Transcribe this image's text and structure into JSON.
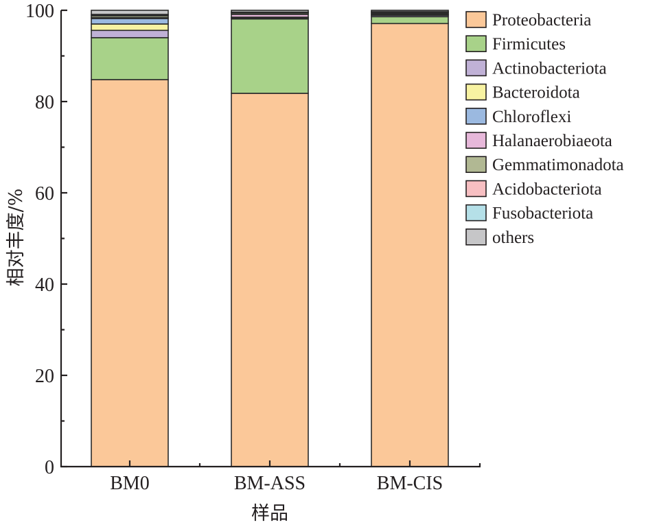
{
  "chart_data": {
    "type": "bar",
    "stacked": true,
    "title": "",
    "xlabel": "样品",
    "ylabel": "相对丰度/%",
    "ylim": [
      0,
      100
    ],
    "yticks": [
      0,
      20,
      40,
      60,
      80,
      100
    ],
    "y_minor_step": 10,
    "grid": false,
    "legend_position": "right",
    "categories": [
      "BM0",
      "BM-ASS",
      "BM-CIS"
    ],
    "series": [
      {
        "name": "Proteobacteria",
        "color": "#fbc899",
        "values": [
          84.8,
          81.8,
          97.1
        ]
      },
      {
        "name": "Firmicutes",
        "color": "#a8d289",
        "values": [
          9.2,
          16.3,
          1.5
        ]
      },
      {
        "name": "Actinobacteriota",
        "color": "#c0b1d6",
        "values": [
          1.6,
          0.2,
          0.3
        ]
      },
      {
        "name": "Bacteroidota",
        "color": "#f8f3a2",
        "values": [
          1.4,
          0.1,
          0.1
        ]
      },
      {
        "name": "Chloroflexi",
        "color": "#9bb9e0",
        "values": [
          1.2,
          0.1,
          0.1
        ]
      },
      {
        "name": "Halanaerobiaeota",
        "color": "#e7b8da",
        "values": [
          0.2,
          0.6,
          0.2
        ]
      },
      {
        "name": "Gemmatimonadota",
        "color": "#b1b893",
        "values": [
          0.4,
          0.3,
          0.2
        ]
      },
      {
        "name": "Acidobacteriota",
        "color": "#f7bfc2",
        "values": [
          0.2,
          0.1,
          0.1
        ]
      },
      {
        "name": "Fusobacteriota",
        "color": "#b5e0e8",
        "values": [
          0.1,
          0.1,
          0.1
        ]
      },
      {
        "name": "others",
        "color": "#c6c6c8",
        "values": [
          0.9,
          0.4,
          0.3
        ]
      }
    ]
  }
}
